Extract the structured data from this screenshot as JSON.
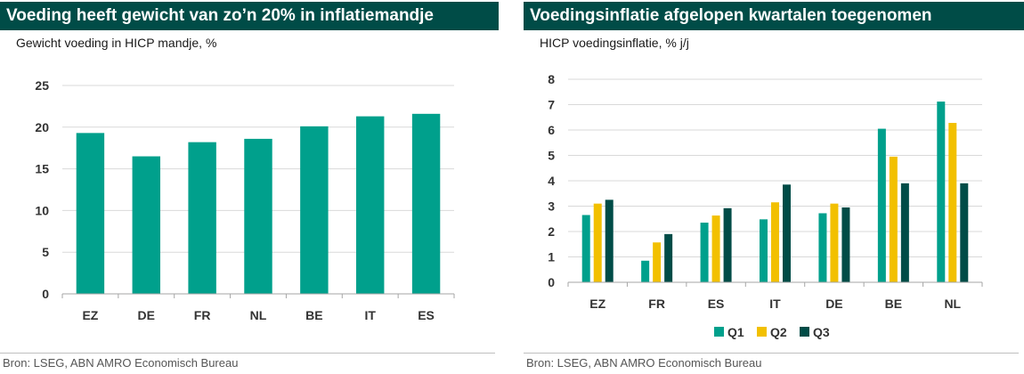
{
  "left_panel": {
    "title": "Voeding heeft gewicht van zo’n 20% in inflatiemandje",
    "subtitle": "Gewicht voeding in HICP mandje, %",
    "source": "Bron: LSEG, ABN AMRO Economisch Bureau"
  },
  "right_panel": {
    "title": "Voedingsinflatie afgelopen kwartalen toegenomen",
    "subtitle": "HICP voedingsinflatie, % j/j",
    "source": "Bron: LSEG, ABN AMRO Economisch Bureau"
  },
  "colors": {
    "banner": "#004c47",
    "teal": "#00a08c",
    "yellow": "#f2c000",
    "dark_green": "#004c47",
    "grid": "#d9d9d9"
  },
  "chart_data": [
    {
      "type": "bar",
      "title": "Voeding heeft gewicht van zo’n 20% in inflatiemandje",
      "subtitle": "Gewicht voeding in HICP mandje, %",
      "categories": [
        "EZ",
        "DE",
        "FR",
        "NL",
        "BE",
        "IT",
        "ES"
      ],
      "values": [
        19.3,
        16.5,
        18.2,
        18.6,
        20.1,
        21.3,
        21.6
      ],
      "xlabel": "",
      "ylabel": "",
      "ylim": [
        0,
        25
      ],
      "yticks": [
        0,
        5,
        10,
        15,
        20,
        25
      ],
      "grid": true,
      "legend": "none",
      "color": "#00a08c"
    },
    {
      "type": "bar",
      "title": "Voedingsinflatie afgelopen kwartalen toegenomen",
      "subtitle": "HICP voedingsinflatie, % j/j",
      "categories": [
        "EZ",
        "FR",
        "ES",
        "IT",
        "DE",
        "BE",
        "NL"
      ],
      "series": [
        {
          "name": "Q1",
          "color": "#00a08c",
          "values": [
            2.65,
            0.85,
            2.35,
            2.48,
            2.72,
            6.05,
            7.12
          ]
        },
        {
          "name": "Q2",
          "color": "#f2c000",
          "values": [
            3.1,
            1.57,
            2.63,
            3.15,
            3.1,
            4.95,
            6.28
          ]
        },
        {
          "name": "Q3",
          "color": "#004c47",
          "values": [
            3.25,
            1.9,
            2.92,
            3.85,
            2.95,
            3.9,
            3.9
          ]
        }
      ],
      "xlabel": "",
      "ylabel": "",
      "ylim": [
        0,
        8
      ],
      "yticks": [
        0,
        1,
        2,
        3,
        4,
        5,
        6,
        7,
        8
      ],
      "grid": true,
      "legend": "bottom-center"
    }
  ]
}
